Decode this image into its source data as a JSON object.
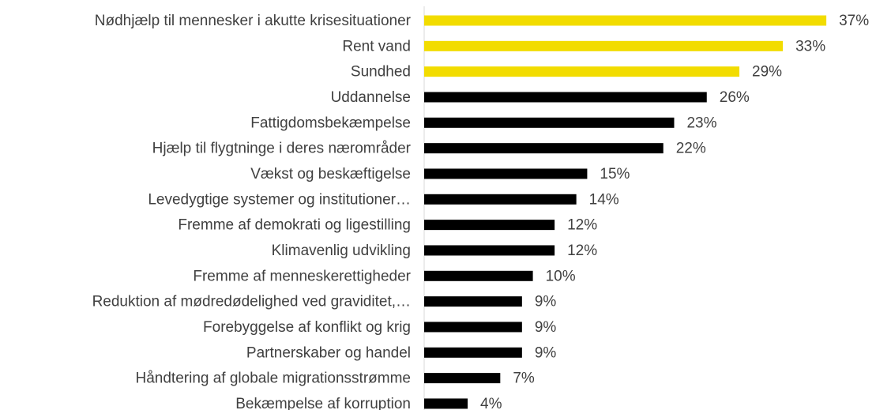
{
  "chart_data": {
    "type": "bar",
    "orientation": "horizontal",
    "categories": [
      "Nødhjælp til mennesker i akutte krisesituationer",
      "Rent vand",
      "Sundhed",
      "Uddannelse",
      "Fattigdomsbekæmpelse",
      "Hjælp til flygtninge i deres nærområder",
      "Vækst og beskæftigelse",
      "Levedygtige systemer og institutioner…",
      "Fremme af demokrati og ligestilling",
      "Klimavenlig udvikling",
      "Fremme af menneskerettigheder",
      "Reduktion af mødredødelighed ved graviditet,…",
      "Forebyggelse af konflikt og krig",
      "Partnerskaber og handel",
      "Håndtering af globale migrationsstrømme",
      "Bekæmpelse af korruption"
    ],
    "values": [
      37,
      33,
      29,
      26,
      23,
      22,
      15,
      14,
      12,
      12,
      10,
      9,
      9,
      9,
      7,
      4
    ],
    "value_labels": [
      "37%",
      "33%",
      "29%",
      "26%",
      "23%",
      "22%",
      "15%",
      "14%",
      "12%",
      "12%",
      "10%",
      "9%",
      "9%",
      "9%",
      "7%",
      "4%"
    ],
    "colors": [
      "#f2dc00",
      "#f2dc00",
      "#f2dc00",
      "#000000",
      "#000000",
      "#000000",
      "#000000",
      "#000000",
      "#000000",
      "#000000",
      "#000000",
      "#000000",
      "#000000",
      "#000000",
      "#000000",
      "#000000"
    ]
  }
}
